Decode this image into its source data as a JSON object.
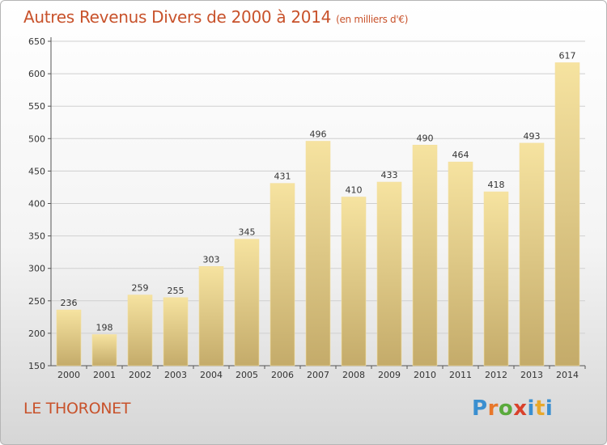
{
  "header": {
    "title": "Autres Revenus Divers de 2000 à 2014",
    "unit": "(en milliers d'€)"
  },
  "footer": {
    "place": "LE THORONET",
    "logo": "Proxiti",
    "logo_colors": [
      "#3a8fd0",
      "#e8772a",
      "#5aaa3c",
      "#d9412b",
      "#3a8fd0",
      "#e8a82a",
      "#3a8fd0"
    ]
  },
  "colors": {
    "title": "#c8522b",
    "bar_light": "#f6e3a0",
    "bar_dark": "#c4ab6a",
    "grid": "#cfcfcf"
  },
  "chart_data": {
    "type": "bar",
    "title": "Autres Revenus Divers de 2000 à 2014",
    "subtitle": "(en milliers d'€)",
    "categories": [
      "2000",
      "2001",
      "2002",
      "2003",
      "2004",
      "2005",
      "2006",
      "2007",
      "2008",
      "2009",
      "2010",
      "2011",
      "2012",
      "2013",
      "2014"
    ],
    "values": [
      236,
      198,
      259,
      255,
      303,
      345,
      431,
      496,
      410,
      433,
      490,
      464,
      418,
      493,
      617
    ],
    "ylim": [
      150,
      650
    ],
    "yticks": [
      150,
      200,
      250,
      300,
      350,
      400,
      450,
      500,
      550,
      600,
      650
    ],
    "grid": true,
    "data_labels": true
  }
}
